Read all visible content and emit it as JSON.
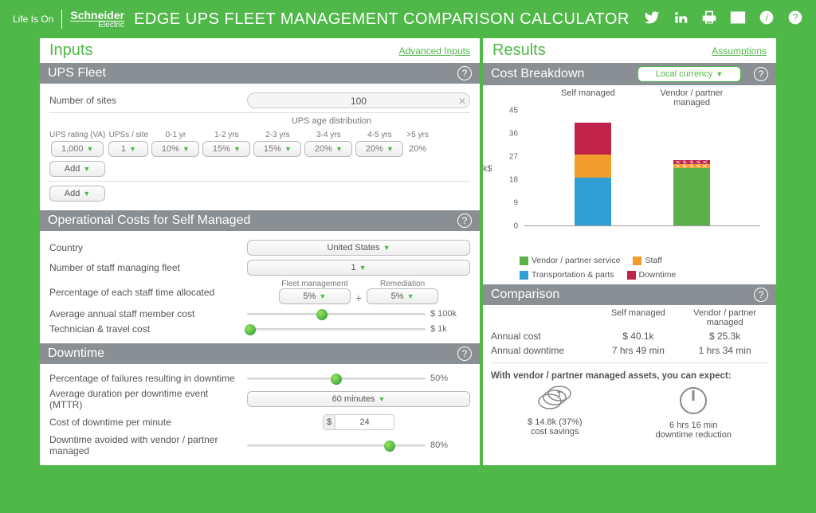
{
  "header": {
    "lifeison": "Life Is On",
    "brand_top": "Schneider",
    "brand_bot": "Electric",
    "title": "EDGE UPS FLEET MANAGEMENT COMPARISON CALCULATOR",
    "icons": [
      "twitter",
      "linkedin",
      "print",
      "mail",
      "info",
      "help"
    ]
  },
  "inputs_panel": {
    "title": "Inputs",
    "advanced_link": "Advanced Inputs",
    "ups_fleet": {
      "section_title": "UPS Fleet",
      "num_sites_label": "Number of sites",
      "num_sites_value": "100",
      "age_header": "UPS age distribution",
      "rating_label": "UPS rating (VA)",
      "per_site_label": "UPSs / site",
      "rating_value": "1,000",
      "per_site_value": "1",
      "age_bins": [
        {
          "label": "0-1 yr",
          "value": "10%"
        },
        {
          "label": "1-2 yrs",
          "value": "15%"
        },
        {
          "label": "2-3 yrs",
          "value": "15%"
        },
        {
          "label": "3-4 yrs",
          "value": "20%"
        },
        {
          "label": "4-5 yrs",
          "value": "20%"
        }
      ],
      "over5_label": ">5 yrs",
      "over5_value": "20%",
      "add_label": "Add"
    },
    "opcosts": {
      "section_title": "Operational Costs for Self Managed",
      "country_label": "Country",
      "country_value": "United States",
      "staff_count_label": "Number of staff managing fleet",
      "staff_count_value": "1",
      "allocation_label": "Percentage of each staff time allocated",
      "fleet_mgmt_label": "Fleet management",
      "fleet_mgmt_value": "5%",
      "remediation_label": "Remediation",
      "remediation_value": "5%",
      "avg_staff_cost_label": "Average annual staff member cost",
      "avg_staff_cost_value": "$ 100k",
      "avg_staff_cost_pct": 42,
      "tech_travel_label": "Technician & travel cost",
      "tech_travel_value": "$ 1k",
      "tech_travel_pct": 2
    },
    "downtime": {
      "section_title": "Downtime",
      "pct_fail_label": "Percentage of failures resulting in downtime",
      "pct_fail_value": "50%",
      "pct_fail_pct": 50,
      "mttr_label": "Average duration per downtime event (MTTR)",
      "mttr_value": "60 minutes",
      "cost_min_label": "Cost of downtime per minute",
      "cost_min_value": "24",
      "avoided_label": "Downtime avoided with vendor / partner managed",
      "avoided_value": "80%",
      "avoided_pct": 80
    }
  },
  "results_panel": {
    "title": "Results",
    "assumptions_link": "Assumptions",
    "cost_breakdown": {
      "section_title": "Cost Breakdown",
      "currency_label": "Local currency",
      "y_axis_label": "k$",
      "y_ticks": [
        0,
        9,
        18,
        27,
        36,
        45
      ],
      "y_max": 45,
      "col1_label": "Self managed",
      "col2_label": "Vendor / partner managed",
      "legend": [
        {
          "name": "Vendor / partner service",
          "color": "#5bb04a"
        },
        {
          "name": "Staff",
          "color": "#f39c2e"
        },
        {
          "name": "Transportation & parts",
          "color": "#2f9fd6"
        },
        {
          "name": "Downtime",
          "color": "#c0234a"
        }
      ],
      "bars": {
        "self": [
          {
            "key": "transport",
            "value": 18.5,
            "color": "#2f9fd6"
          },
          {
            "key": "staff",
            "value": 9,
            "color": "#f39c2e"
          },
          {
            "key": "downtime",
            "value": 12.6,
            "color": "#c0234a"
          }
        ],
        "vendor": [
          {
            "key": "service",
            "value": 22.5,
            "color": "#5bb04a"
          },
          {
            "key": "staff",
            "value": 1.3,
            "color": "#f39c2e",
            "hatch": true
          },
          {
            "key": "downtime",
            "value": 1.5,
            "color": "#c0234a",
            "hatch": true
          }
        ]
      }
    },
    "comparison": {
      "section_title": "Comparison",
      "col1": "Self managed",
      "col2": "Vendor / partner managed",
      "rows": [
        {
          "label": "Annual cost",
          "v1": "$ 40.1k",
          "v2": "$ 25.3k"
        },
        {
          "label": "Annual downtime",
          "v1": "7 hrs 49 min",
          "v2": "1 hrs 34 min"
        }
      ]
    },
    "summary": {
      "lead": "With vendor / partner managed assets, you can expect:",
      "savings_value": "$ 14.8k (37%)",
      "savings_label": "cost savings",
      "downtime_value": "6 hrs 16 min",
      "downtime_label": "downtime reduction"
    }
  }
}
